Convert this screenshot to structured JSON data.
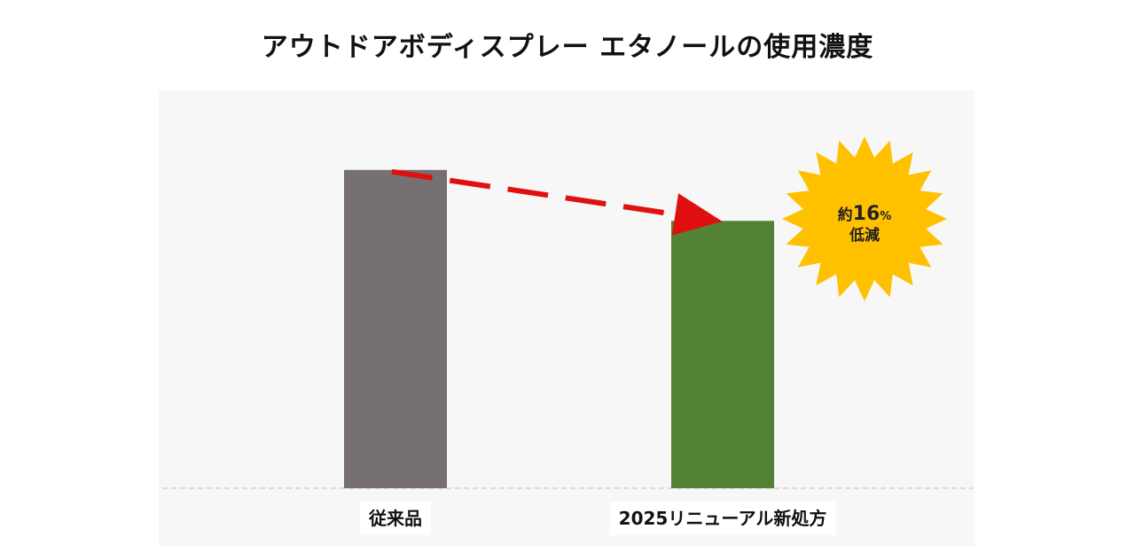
{
  "title": "アウトドアボディスプレー エタノールの使用濃度",
  "chart_data": {
    "type": "bar",
    "title": "アウトドアボディスプレー エタノールの使用濃度",
    "categories": [
      "従来品",
      "2025リニューアル新処方"
    ],
    "values": [
      100,
      84
    ],
    "value_unit": "relative (従来品 = 100)",
    "colors": [
      "#767070",
      "#538234"
    ],
    "ylim": [
      0,
      125
    ],
    "grid": false,
    "baseline": "dashed",
    "annotation": {
      "arrow": "red dashed arrow from 従来品 bar top to 2025リニューアル新処方 bar top",
      "arrow_color": "#e01010",
      "burst_color": "#ffc000",
      "prefix": "約",
      "number": "16",
      "unit": "%",
      "suffix": "低減"
    }
  },
  "colors": {
    "background_panel": "#f7f7f7",
    "arrow": "#e01010",
    "burst": "#ffc000"
  }
}
